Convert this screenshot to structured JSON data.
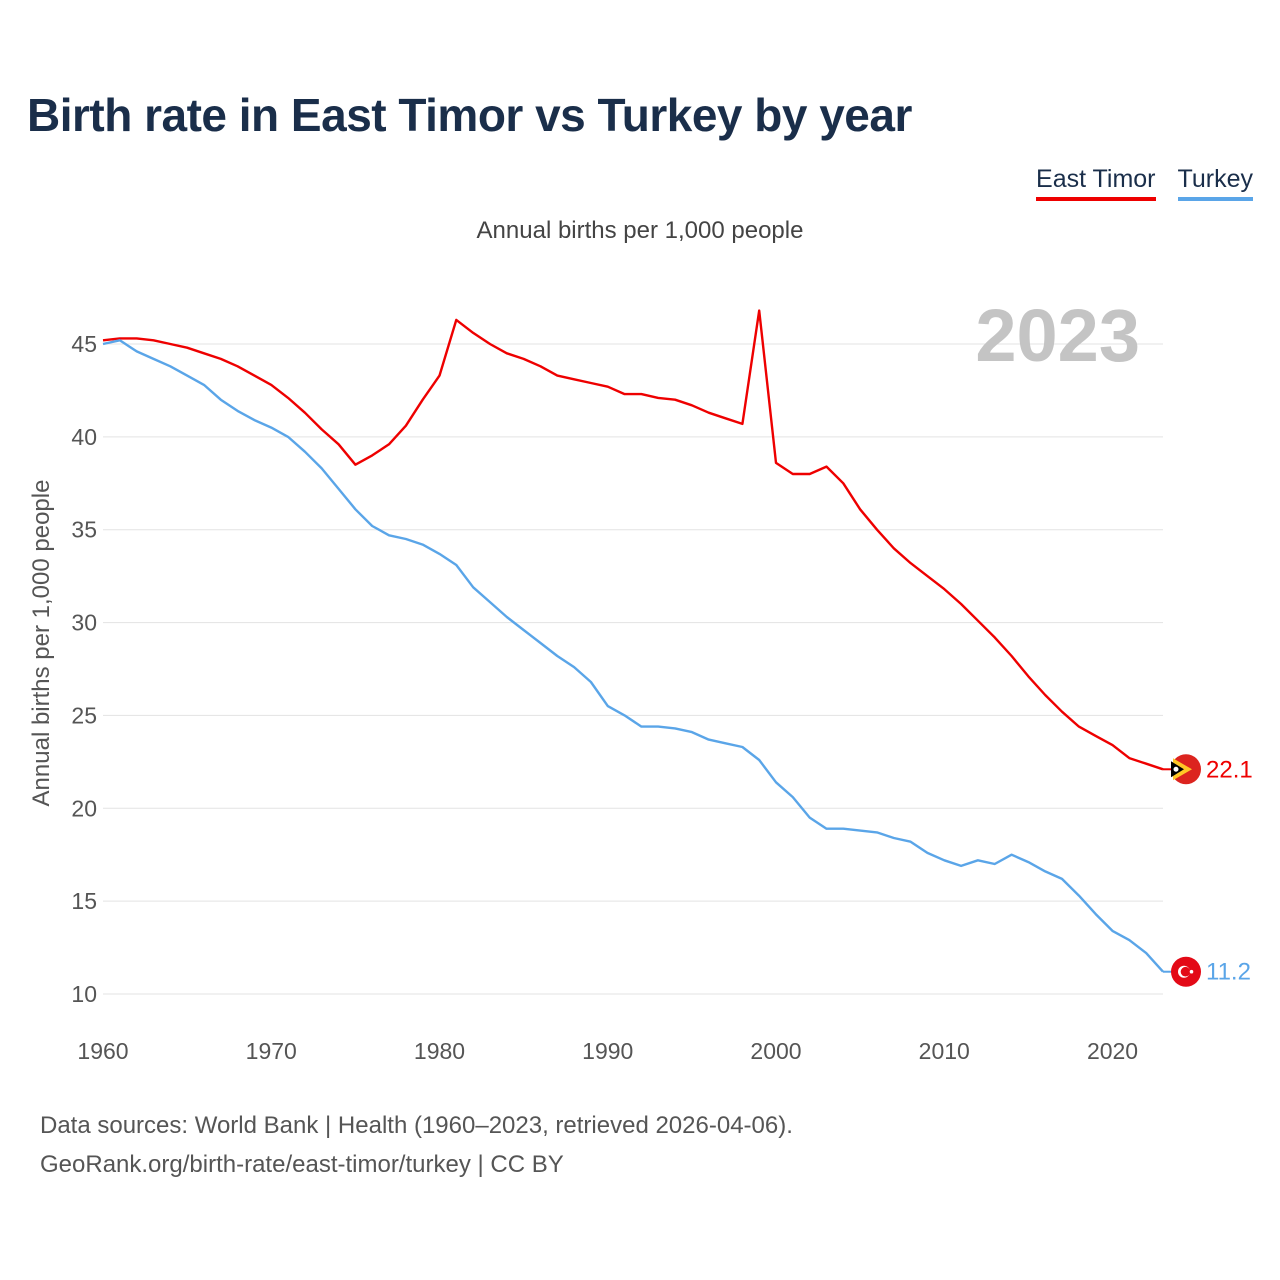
{
  "title": "Birth rate in East Timor vs Turkey by year",
  "subtitle": "Annual births per 1,000 people",
  "year_overlay": "2023",
  "legend": [
    {
      "label": "East Timor",
      "color": "#ee0000"
    },
    {
      "label": "Turkey",
      "color": "#5aa5e8"
    }
  ],
  "source": {
    "line1": "Data sources: World Bank | Health (1960–2023, retrieved 2026-04-06).",
    "line2": "GeoRank.org/birth-rate/east-timor/turkey | CC BY"
  },
  "chart_data": {
    "type": "line",
    "title": "Birth rate in East Timor vs Turkey by year",
    "xlabel": "",
    "ylabel": "Annual births per 1,000 people",
    "xlim": [
      1960,
      2023
    ],
    "ylim": [
      10,
      47
    ],
    "xticks": [
      1960,
      1970,
      1980,
      1990,
      2000,
      2010,
      2020
    ],
    "yticks": [
      10,
      15,
      20,
      25,
      30,
      35,
      40,
      45
    ],
    "grid": true,
    "legend_position": "top-right",
    "x": [
      1960,
      1961,
      1962,
      1963,
      1964,
      1965,
      1966,
      1967,
      1968,
      1969,
      1970,
      1971,
      1972,
      1973,
      1974,
      1975,
      1976,
      1977,
      1978,
      1979,
      1980,
      1981,
      1982,
      1983,
      1984,
      1985,
      1986,
      1987,
      1988,
      1989,
      1990,
      1991,
      1992,
      1993,
      1994,
      1995,
      1996,
      1997,
      1998,
      1999,
      2000,
      2001,
      2002,
      2003,
      2004,
      2005,
      2006,
      2007,
      2008,
      2009,
      2010,
      2011,
      2012,
      2013,
      2014,
      2015,
      2016,
      2017,
      2018,
      2019,
      2020,
      2021,
      2022,
      2023
    ],
    "series": [
      {
        "name": "East Timor",
        "color": "#ee0000",
        "end_label": "22.1",
        "values": [
          45.2,
          45.3,
          45.3,
          45.2,
          45.0,
          44.8,
          44.5,
          44.2,
          43.8,
          43.3,
          42.8,
          42.1,
          41.3,
          40.4,
          39.6,
          38.5,
          39.0,
          39.6,
          40.6,
          42.0,
          43.3,
          46.3,
          45.6,
          45.0,
          44.5,
          44.2,
          43.8,
          43.3,
          43.1,
          42.9,
          42.7,
          42.3,
          42.3,
          42.1,
          42.0,
          41.7,
          41.3,
          41.0,
          40.7,
          46.8,
          38.6,
          38.0,
          38.0,
          38.4,
          37.5,
          36.1,
          35.0,
          34.0,
          33.2,
          32.5,
          31.8,
          31.0,
          30.1,
          29.2,
          28.2,
          27.1,
          26.1,
          25.2,
          24.4,
          23.9,
          23.4,
          22.7,
          22.4,
          22.1
        ]
      },
      {
        "name": "Turkey",
        "color": "#5aa5e8",
        "end_label": "11.2",
        "values": [
          45.0,
          45.2,
          44.6,
          44.2,
          43.8,
          43.3,
          42.8,
          42.0,
          41.4,
          40.9,
          40.5,
          40.0,
          39.2,
          38.3,
          37.2,
          36.1,
          35.2,
          34.7,
          34.5,
          34.2,
          33.7,
          33.1,
          31.9,
          31.1,
          30.3,
          29.6,
          28.9,
          28.2,
          27.6,
          26.8,
          25.5,
          25.0,
          24.4,
          24.4,
          24.3,
          24.1,
          23.7,
          23.5,
          23.3,
          22.6,
          21.4,
          20.6,
          19.5,
          18.9,
          18.9,
          18.8,
          18.7,
          18.4,
          18.2,
          17.6,
          17.2,
          16.9,
          17.2,
          17.0,
          17.5,
          17.1,
          16.6,
          16.2,
          15.3,
          14.3,
          13.4,
          12.9,
          12.2,
          11.2
        ]
      }
    ]
  }
}
